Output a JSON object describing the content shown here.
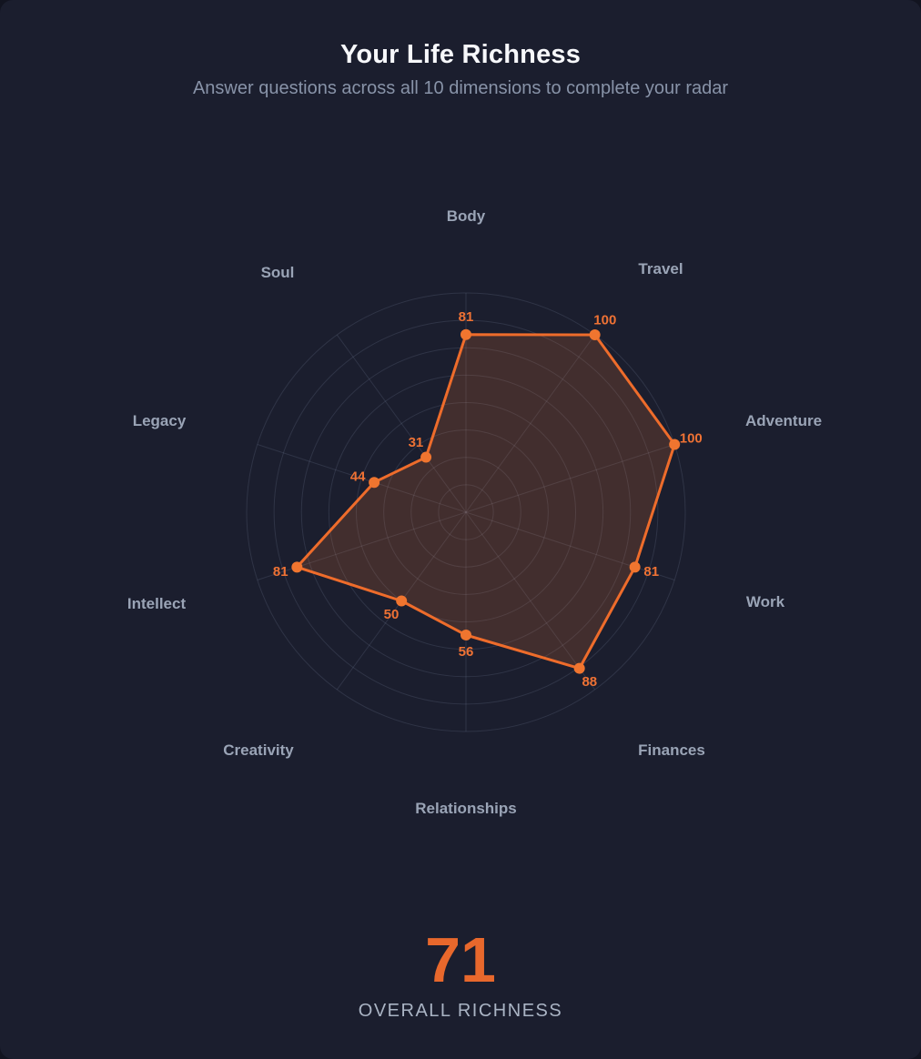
{
  "header": {
    "title": "Your Life Richness",
    "subtitle": "Answer questions across all 10 dimensions to complete your radar"
  },
  "chart_data": {
    "type": "radar",
    "title": "Your Life Richness",
    "categories": [
      "Body",
      "Travel",
      "Adventure",
      "Work",
      "Finances",
      "Relationships",
      "Creativity",
      "Intellect",
      "Legacy",
      "Soul"
    ],
    "values": [
      81,
      100,
      100,
      81,
      88,
      56,
      50,
      81,
      44,
      31
    ],
    "scale": {
      "min": 0,
      "max": 100,
      "rings": 8,
      "grid_shape": "circular",
      "spokes": 10
    },
    "legend_position": "none",
    "colors": {
      "line": "#ee6c2b",
      "point": "#f0752f",
      "fill": "rgba(244,124,50,0.18)",
      "grid": "rgba(154,168,200,0.16)",
      "value_label": "#ef7234",
      "category_label": "#9aa4b6",
      "background": "#1b1e2e"
    }
  },
  "overall": {
    "score": 71,
    "label": "OVERALL RICHNESS"
  }
}
